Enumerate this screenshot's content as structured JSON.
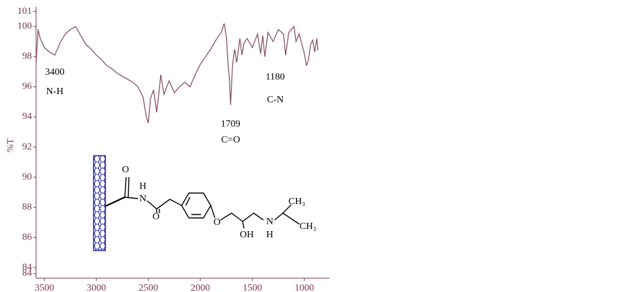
{
  "chart_data": {
    "type": "line",
    "y_label": "%T",
    "xlim": [
      3580,
      760
    ],
    "ylim": [
      83.3,
      101.3
    ],
    "xticks": [
      3500,
      3000,
      2500,
      2000,
      1500,
      1000
    ],
    "yticks": [
      101,
      100,
      98,
      96,
      94,
      92,
      90,
      88,
      86,
      84,
      {
        "value": 83.6,
        "label": "84"
      }
    ],
    "color": "#8a5564",
    "axis_color": "#7a3a4a",
    "x": [
      3580,
      3560,
      3540,
      3500,
      3450,
      3400,
      3350,
      3300,
      3250,
      3200,
      3150,
      3100,
      3050,
      3000,
      2950,
      2900,
      2850,
      2800,
      2750,
      2700,
      2650,
      2600,
      2550,
      2520,
      2500,
      2480,
      2450,
      2420,
      2400,
      2380,
      2350,
      2300,
      2250,
      2200,
      2150,
      2100,
      2050,
      2000,
      1950,
      1900,
      1850,
      1800,
      1770,
      1750,
      1730,
      1720,
      1709,
      1690,
      1670,
      1650,
      1620,
      1600,
      1580,
      1550,
      1500,
      1450,
      1420,
      1400,
      1380,
      1350,
      1300,
      1250,
      1200,
      1180,
      1150,
      1100,
      1080,
      1050,
      1000,
      980,
      960,
      940,
      920,
      900,
      880,
      870
    ],
    "series": [
      {
        "values": [
          97.5,
          99.8,
          99.2,
          98.6,
          98.3,
          98.1,
          98.9,
          99.5,
          99.8,
          100.0,
          99.4,
          98.8,
          98.5,
          98.1,
          97.8,
          97.4,
          97.2,
          96.9,
          96.7,
          96.5,
          96.3,
          96.0,
          95.3,
          94.0,
          93.6,
          95.2,
          95.8,
          94.3,
          95.5,
          96.8,
          95.5,
          96.4,
          95.6,
          96.0,
          96.3,
          96.0,
          96.8,
          97.5,
          98.0,
          98.5,
          99.1,
          99.6,
          100.2,
          99.3,
          97.2,
          96.5,
          94.8,
          97.5,
          98.5,
          97.6,
          99.2,
          98.1,
          98.9,
          99.2,
          98.6,
          99.5,
          98.2,
          99.4,
          98.0,
          99.6,
          99.0,
          99.8,
          99.5,
          98.1,
          99.6,
          100.0,
          99.0,
          99.5,
          98.2,
          97.4,
          97.8,
          98.8,
          99.1,
          98.3,
          99.2,
          98.4
        ]
      }
    ],
    "annotations": [
      {
        "text": "3400",
        "x": 3400
      },
      {
        "text": "N-H",
        "x": 3400
      },
      {
        "text": "1709",
        "x": 1709
      },
      {
        "text": "C=O",
        "x": 1709
      },
      {
        "text": "1180",
        "x": 1180
      },
      {
        "text": "C-N",
        "x": 1180
      }
    ],
    "structure_labels": [
      "O",
      "H",
      "N",
      "O",
      "O",
      "OH",
      "N",
      "H",
      "CH₃",
      "CH₃"
    ]
  }
}
